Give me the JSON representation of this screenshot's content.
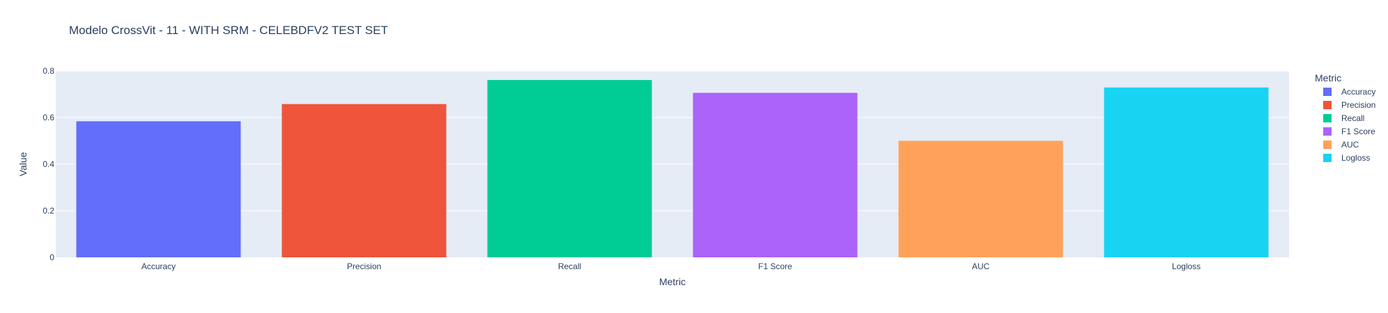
{
  "chart_data": {
    "type": "bar",
    "title": "Modelo CrossVit - 11 - WITH SRM - CELEBDFV2 TEST SET",
    "xlabel": "Metric",
    "ylabel": "Value",
    "categories": [
      "Accuracy",
      "Precision",
      "Recall",
      "F1 Score",
      "AUC",
      "Logloss"
    ],
    "values": [
      0.584,
      0.658,
      0.761,
      0.706,
      0.5,
      0.729
    ],
    "colors": [
      "#636efa",
      "#EF553B",
      "#00cc96",
      "#ab63fa",
      "#FFA15A",
      "#19d3f3"
    ],
    "ylim": [
      0,
      0.8
    ],
    "yticks": [
      0,
      0.2,
      0.4,
      0.6,
      0.8
    ],
    "ytick_labels": [
      "0",
      "0.2",
      "0.4",
      "0.6",
      "0.8"
    ],
    "legend": {
      "title": "Metric",
      "placement": "right",
      "entries": [
        "Accuracy",
        "Precision",
        "Recall",
        "F1 Score",
        "AUC",
        "Logloss"
      ]
    },
    "grid": true,
    "plot_bgcolor": "#E5ECF6",
    "gridcolor": "#ffffff",
    "text_color": "#2a3f5f"
  }
}
